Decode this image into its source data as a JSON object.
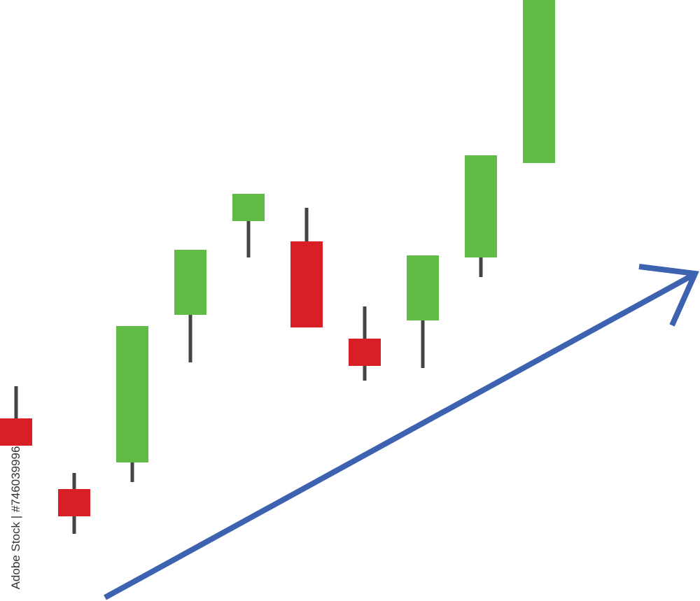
{
  "chart_data": {
    "type": "candlestick",
    "watermark": "Adobe Stock | #746039996",
    "open": [
      261,
      160,
      198,
      409,
      543,
      514,
      375,
      401,
      491,
      626
    ],
    "high": [
      307,
      183,
      393,
      502,
      582,
      562,
      421,
      494,
      637,
      859
    ],
    "low": [
      222,
      96,
      170,
      341,
      491,
      391,
      315,
      333,
      463,
      626
    ],
    "close": [
      222,
      121,
      393,
      502,
      582,
      391,
      336,
      494,
      637,
      859
    ],
    "up_color": "#62bb46",
    "down_color": "#d91f26",
    "wick_color": "#444444",
    "ylim": [
      0,
      859
    ]
  }
}
